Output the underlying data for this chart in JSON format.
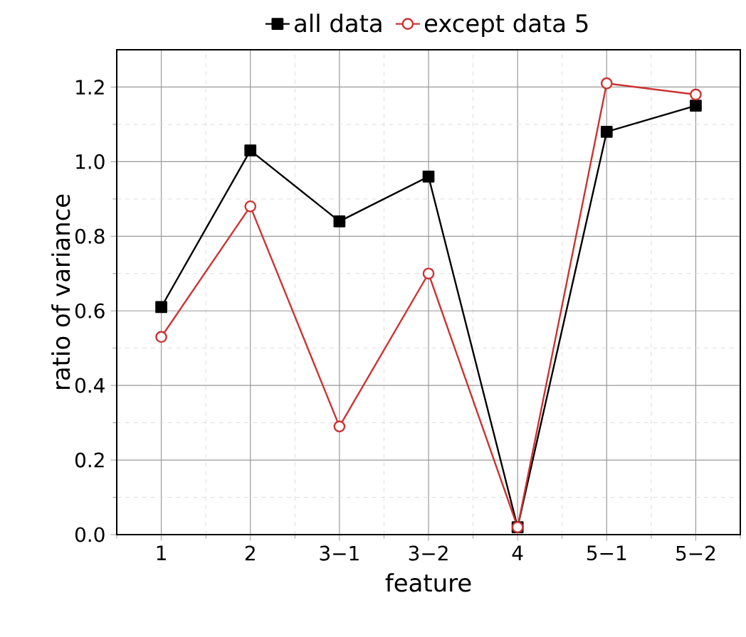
{
  "chart_data": {
    "type": "line",
    "xlabel": "feature",
    "ylabel": "ratio of variance",
    "categories": [
      "1",
      "2",
      "3−1",
      "3−2",
      "4",
      "5−1",
      "5−2"
    ],
    "series": [
      {
        "name": "all data",
        "color": "#000000",
        "marker": "square",
        "values": [
          0.61,
          1.03,
          0.84,
          0.96,
          0.02,
          1.08,
          1.15
        ]
      },
      {
        "name": "except data 5",
        "color": "#cc3333",
        "marker": "circle",
        "values": [
          0.53,
          0.88,
          0.29,
          0.7,
          0.02,
          1.21,
          1.18
        ]
      }
    ],
    "ylim": [
      0,
      1.3
    ],
    "yticks": [
      {
        "value": 0,
        "label": "0.0"
      },
      0.2,
      0.4,
      0.6,
      0.8,
      {
        "value": 1,
        "label": "1.0"
      },
      1.2
    ],
    "grid": true,
    "legend": "top",
    "line_style": "solid"
  }
}
